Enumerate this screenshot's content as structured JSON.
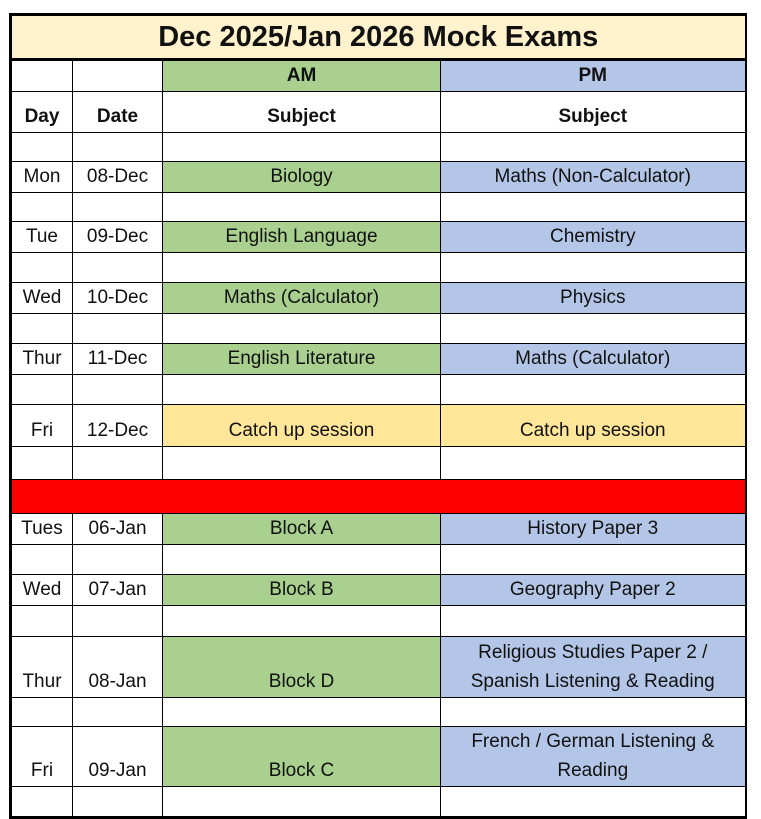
{
  "title": "Dec 2025/Jan 2026 Mock Exams",
  "header": {
    "am": "AM",
    "pm": "PM",
    "day": "Day",
    "date": "Date",
    "am_subject": "Subject",
    "pm_subject": "Subject"
  },
  "colors": {
    "am": "#a9d08e",
    "pm": "#b4c6e7",
    "catch_up": "#ffe699",
    "title_bg": "#fff2cc",
    "break": "#ff0000"
  },
  "rows": [
    {
      "day": "Mon",
      "date": "08-Dec",
      "am": "Biology",
      "pm": "Maths (Non-Calculator)"
    },
    {
      "day": "Tue",
      "date": "09-Dec",
      "am": "English Language",
      "pm": "Chemistry"
    },
    {
      "day": "Wed",
      "date": "10-Dec",
      "am": "Maths (Calculator)",
      "pm": "Physics"
    },
    {
      "day": "Thur",
      "date": "11-Dec",
      "am": "English Literature",
      "pm": "Maths (Calculator)"
    },
    {
      "day": "Fri",
      "date": "12-Dec",
      "am": "Catch up session",
      "pm": "Catch up session",
      "style": "catch_up"
    },
    {
      "break": true
    },
    {
      "day": "Tues",
      "date": "06-Jan",
      "am": "Block A",
      "pm": "History Paper 3"
    },
    {
      "day": "Wed",
      "date": "07-Jan",
      "am": "Block B",
      "pm": "Geography Paper 2"
    },
    {
      "day": "Thur",
      "date": "08-Jan",
      "am": "Block D",
      "pm": "Religious Studies Paper 2 / Spanish Listening & Reading",
      "pm_lines": [
        "Religious Studies Paper 2 /",
        "Spanish Listening & Reading"
      ]
    },
    {
      "day": "Fri",
      "date": "09-Jan",
      "am": "Block C",
      "pm": "French / German Listening & Reading",
      "pm_lines": [
        "French / German Listening &",
        "Reading"
      ]
    }
  ]
}
